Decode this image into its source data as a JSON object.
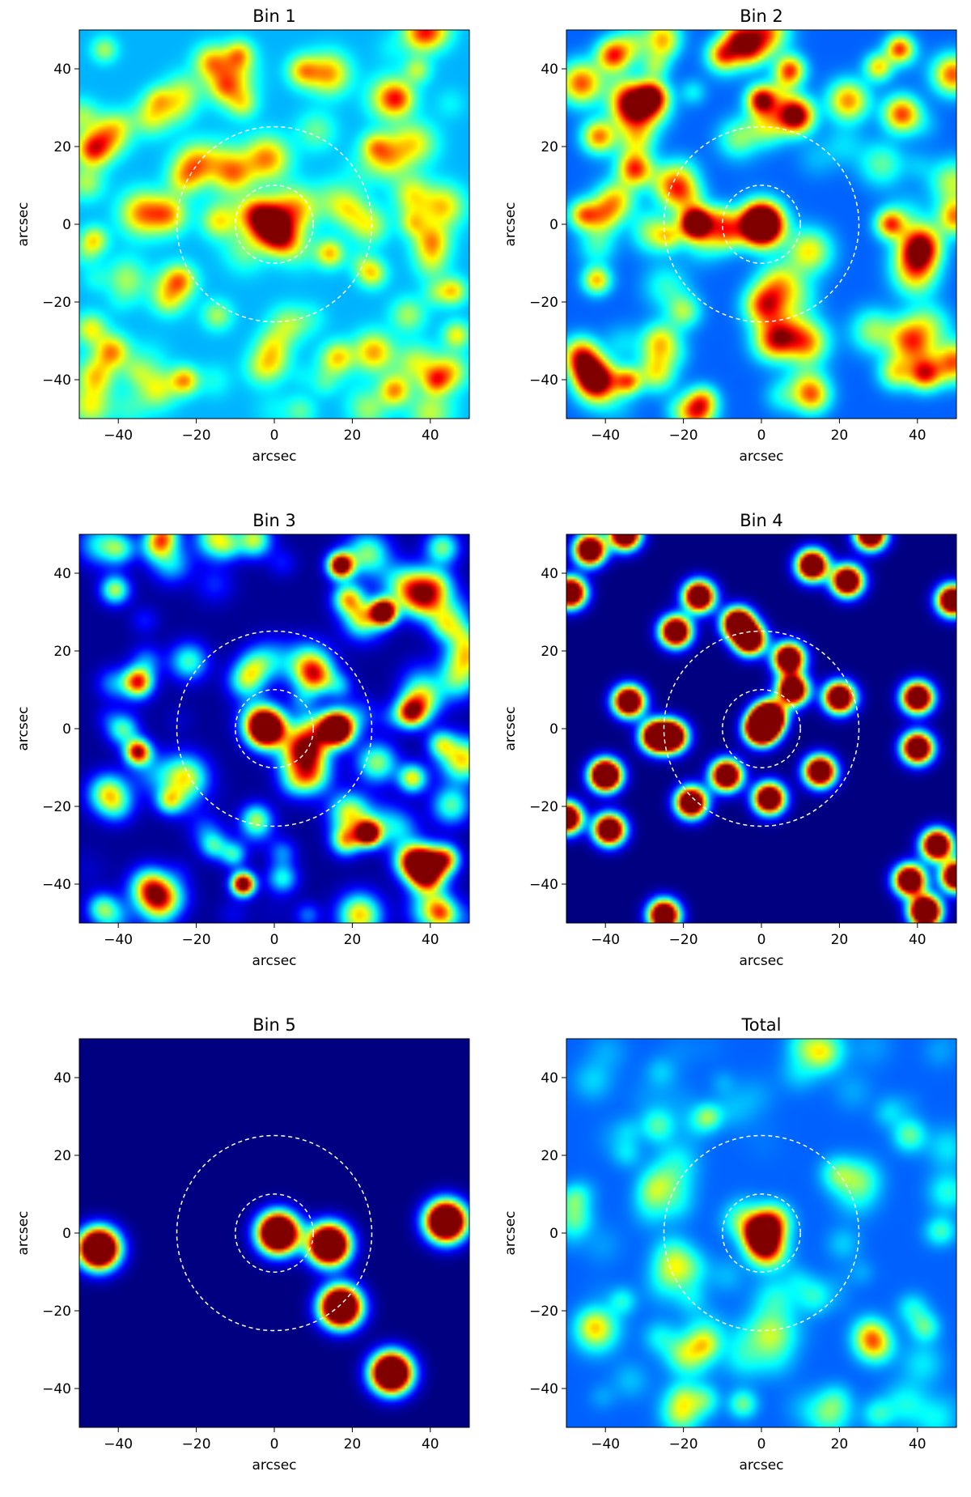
{
  "chart_data": [
    {
      "type": "heatmap",
      "title": "Bin 1",
      "xlabel": "arcsec",
      "ylabel": "arcsec",
      "xlim": [
        -50,
        50
      ],
      "ylim": [
        -50,
        50
      ],
      "xticks": [
        -40,
        -20,
        0,
        20,
        40
      ],
      "yticks": [
        -40,
        -20,
        0,
        20,
        40
      ],
      "colormap": "jet",
      "rings": [
        {
          "center": [
            0,
            0
          ],
          "radius": 10
        },
        {
          "center": [
            0,
            0
          ],
          "radius": 25
        }
      ],
      "background_level": 0.3,
      "noise_level": 0.2,
      "sources": [
        {
          "x": -1,
          "y": 0,
          "amp": 0.55,
          "sigma": 3.5
        },
        {
          "x": 2,
          "y": -4,
          "amp": 0.25,
          "sigma": 3
        },
        {
          "x": -5,
          "y": 3,
          "amp": 0.22,
          "sigma": 3
        }
      ]
    },
    {
      "type": "heatmap",
      "title": "Bin 2",
      "xlabel": "arcsec",
      "ylabel": "arcsec",
      "xlim": [
        -50,
        50
      ],
      "ylim": [
        -50,
        50
      ],
      "xticks": [
        -40,
        -20,
        0,
        20,
        40
      ],
      "yticks": [
        -40,
        -20,
        0,
        20,
        40
      ],
      "colormap": "jet",
      "rings": [
        {
          "center": [
            0,
            0
          ],
          "radius": 10
        },
        {
          "center": [
            0,
            0
          ],
          "radius": 25
        }
      ],
      "background_level": 0.22,
      "noise_level": 0.28,
      "sources": [
        {
          "x": 0,
          "y": 0,
          "amp": 1.0,
          "sigma": 3.5
        },
        {
          "x": 0,
          "y": 32,
          "amp": 0.45,
          "sigma": 2.5
        },
        {
          "x": -28,
          "y": 33,
          "amp": 0.35,
          "sigma": 2.5
        },
        {
          "x": 33,
          "y": 0,
          "amp": 0.35,
          "sigma": 2.5
        }
      ]
    },
    {
      "type": "heatmap",
      "title": "Bin 3",
      "xlabel": "arcsec",
      "ylabel": "arcsec",
      "xlim": [
        -50,
        50
      ],
      "ylim": [
        -50,
        50
      ],
      "xticks": [
        -40,
        -20,
        0,
        20,
        40
      ],
      "yticks": [
        -40,
        -20,
        0,
        20,
        40
      ],
      "colormap": "jet",
      "rings": [
        {
          "center": [
            0,
            0
          ],
          "radius": 10
        },
        {
          "center": [
            0,
            0
          ],
          "radius": 25
        }
      ],
      "background_level": 0.02,
      "noise_level": 0.3,
      "sources": [
        {
          "x": -2,
          "y": 0,
          "amp": 1.0,
          "sigma": 3.2
        },
        {
          "x": 16,
          "y": 0,
          "amp": 1.0,
          "sigma": 2.8
        },
        {
          "x": 28,
          "y": 30,
          "amp": 0.85,
          "sigma": 2.2
        },
        {
          "x": 24,
          "y": -27,
          "amp": 0.75,
          "sigma": 2.2
        },
        {
          "x": 17,
          "y": 42,
          "amp": 0.75,
          "sigma": 2.2
        },
        {
          "x": -8,
          "y": -40,
          "amp": 0.75,
          "sigma": 2
        },
        {
          "x": -35,
          "y": -6,
          "amp": 0.6,
          "sigma": 2.2
        },
        {
          "x": -35,
          "y": 12,
          "amp": 0.5,
          "sigma": 2.5
        },
        {
          "x": 35,
          "y": 4,
          "amp": 0.5,
          "sigma": 2.5
        }
      ]
    },
    {
      "type": "heatmap",
      "title": "Bin 4",
      "xlabel": "arcsec",
      "ylabel": "arcsec",
      "xlim": [
        -50,
        50
      ],
      "ylim": [
        -50,
        50
      ],
      "xticks": [
        -40,
        -20,
        0,
        20,
        40
      ],
      "yticks": [
        -40,
        -20,
        0,
        20,
        40
      ],
      "colormap": "jet",
      "rings": [
        {
          "center": [
            0,
            0
          ],
          "radius": 10
        },
        {
          "center": [
            0,
            0
          ],
          "radius": 25
        }
      ],
      "background_level": 0.0,
      "noise_level": 0.0,
      "source_sigma": 2.6,
      "sources": [
        {
          "x": 0,
          "y": 0,
          "amp": 1.4
        },
        {
          "x": 2,
          "y": 3,
          "amp": 1.2
        },
        {
          "x": -40,
          "y": -12,
          "amp": 1.2
        },
        {
          "x": -39,
          "y": -26,
          "amp": 1.0
        },
        {
          "x": -44,
          "y": 46,
          "amp": 1.0
        },
        {
          "x": -49,
          "y": 35,
          "amp": 1.0
        },
        {
          "x": -16,
          "y": 34,
          "amp": 1.0
        },
        {
          "x": -22,
          "y": 25,
          "amp": 1.0
        },
        {
          "x": -6,
          "y": 27,
          "amp": 1.1
        },
        {
          "x": -3,
          "y": 23,
          "amp": 1.0
        },
        {
          "x": 7,
          "y": 18,
          "amp": 1.0
        },
        {
          "x": 8,
          "y": 10,
          "amp": 1.0
        },
        {
          "x": 20,
          "y": 8,
          "amp": 1.0
        },
        {
          "x": 13,
          "y": 42,
          "amp": 1.0
        },
        {
          "x": 22,
          "y": 38,
          "amp": 1.0
        },
        {
          "x": 28,
          "y": 50,
          "amp": 1.0
        },
        {
          "x": -34,
          "y": 7,
          "amp": 1.0
        },
        {
          "x": -27,
          "y": -2,
          "amp": 1.0
        },
        {
          "x": -23,
          "y": -2,
          "amp": 1.0
        },
        {
          "x": -9,
          "y": -12,
          "amp": 1.0
        },
        {
          "x": -18,
          "y": -19,
          "amp": 1.0
        },
        {
          "x": 2,
          "y": -18,
          "amp": 1.0
        },
        {
          "x": 15,
          "y": -11,
          "amp": 1.0
        },
        {
          "x": 40,
          "y": 8,
          "amp": 1.0
        },
        {
          "x": 40,
          "y": -5,
          "amp": 1.0
        },
        {
          "x": 49,
          "y": 33,
          "amp": 1.0
        },
        {
          "x": 45,
          "y": -30,
          "amp": 1.0
        },
        {
          "x": 38,
          "y": -39,
          "amp": 1.0
        },
        {
          "x": 42,
          "y": -47,
          "amp": 1.2
        },
        {
          "x": 50,
          "y": -38,
          "amp": 1.0
        },
        {
          "x": -25,
          "y": -48,
          "amp": 1.0
        },
        {
          "x": -50,
          "y": -23,
          "amp": 1.0
        },
        {
          "x": -35,
          "y": 50,
          "amp": 1.0
        }
      ]
    },
    {
      "type": "heatmap",
      "title": "Bin 5",
      "xlabel": "arcsec",
      "ylabel": "arcsec",
      "xlim": [
        -50,
        50
      ],
      "ylim": [
        -50,
        50
      ],
      "xticks": [
        -40,
        -20,
        0,
        20,
        40
      ],
      "yticks": [
        -40,
        -20,
        0,
        20,
        40
      ],
      "colormap": "jet",
      "rings": [
        {
          "center": [
            0,
            0
          ],
          "radius": 10
        },
        {
          "center": [
            0,
            0
          ],
          "radius": 25
        }
      ],
      "background_level": 0.0,
      "noise_level": 0.0,
      "source_sigma": 3.4,
      "sources": [
        {
          "x": 1,
          "y": 0,
          "amp": 1.2
        },
        {
          "x": 14,
          "y": -3,
          "amp": 1.2
        },
        {
          "x": 17,
          "y": -19,
          "amp": 1.2
        },
        {
          "x": 30,
          "y": -36,
          "amp": 1.2
        },
        {
          "x": 44,
          "y": 3,
          "amp": 1.2
        },
        {
          "x": -45,
          "y": -4,
          "amp": 1.2
        }
      ]
    },
    {
      "type": "heatmap",
      "title": "Total",
      "xlabel": "arcsec",
      "ylabel": "arcsec",
      "xlim": [
        -50,
        50
      ],
      "ylim": [
        -50,
        50
      ],
      "xticks": [
        -40,
        -20,
        0,
        20,
        40
      ],
      "yticks": [
        -40,
        -20,
        0,
        20,
        40
      ],
      "colormap": "jet",
      "rings": [
        {
          "center": [
            0,
            0
          ],
          "radius": 10
        },
        {
          "center": [
            0,
            0
          ],
          "radius": 25
        }
      ],
      "background_level": 0.22,
      "noise_level": 0.12,
      "sources": [
        {
          "x": 0,
          "y": 0,
          "amp": 0.8,
          "sigma": 2.8
        },
        {
          "x": 1,
          "y": -4,
          "amp": 0.35,
          "sigma": 3
        },
        {
          "x": 3,
          "y": 3,
          "amp": 0.3,
          "sigma": 3
        }
      ]
    }
  ]
}
